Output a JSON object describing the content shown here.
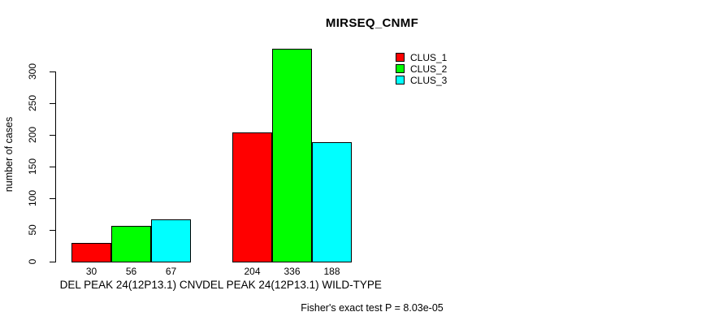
{
  "chart_data": {
    "type": "bar",
    "variant": "grouped",
    "title": "MIRSEQ_CNMF",
    "ylabel": "number of cases",
    "xlabel": "",
    "ylim": [
      0,
      300
    ],
    "yticks": [
      0,
      50,
      100,
      150,
      200,
      250,
      300
    ],
    "grid": false,
    "legend_position": "topright",
    "categories": [
      "DEL PEAK 24(12P13.1) CNV",
      "DEL PEAK 24(12P13.1) WILD-TYPE"
    ],
    "series": [
      {
        "name": "CLUS_1",
        "color": "#FF0000",
        "values": [
          30,
          204
        ]
      },
      {
        "name": "CLUS_2",
        "color": "#00FF00",
        "values": [
          56,
          336
        ]
      },
      {
        "name": "CLUS_3",
        "color": "#00FFFF",
        "values": [
          67,
          188
        ]
      }
    ],
    "bar_value_labels": [
      [
        "30",
        "56",
        "67"
      ],
      [
        "204",
        "336",
        "188"
      ]
    ],
    "footer": "Fisher's exact test P = 8.03e-05"
  }
}
